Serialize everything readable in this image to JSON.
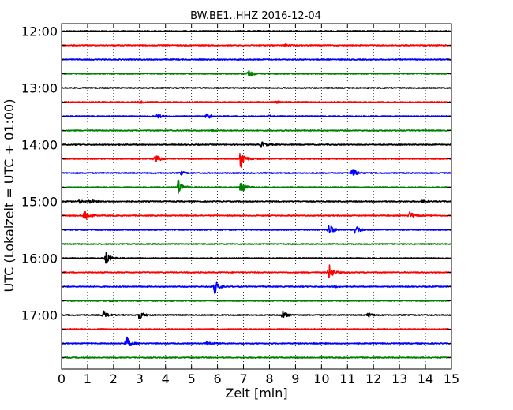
{
  "chart_data": {
    "type": "line",
    "title": "BW.BE1..HHZ 2016-12-04",
    "xlabel": "Zeit  [min]",
    "ylabel": "UTC (Lokalzeit = UTC + 01:00)",
    "xlim": [
      0,
      15
    ],
    "x_ticks": [
      0,
      1,
      2,
      3,
      4,
      5,
      6,
      7,
      8,
      9,
      10,
      11,
      12,
      13,
      14,
      15
    ],
    "x_tick_labels": [
      "0",
      "1",
      "2",
      "3",
      "4",
      "5",
      "6",
      "7",
      "8",
      "9",
      "10",
      "11",
      "12",
      "13",
      "14",
      "15"
    ],
    "y_tick_labels": [
      "12:00",
      "13:00",
      "14:00",
      "15:00",
      "16:00",
      "17:00"
    ],
    "grid": "vertical dotted",
    "line_colors": [
      "#000000",
      "#ff0000",
      "#0000ff",
      "#008000"
    ],
    "traces": [
      {
        "start": "12:00",
        "events": []
      },
      {
        "start": "12:15",
        "events": [
          {
            "t": 8.6,
            "amp": 0.12
          }
        ]
      },
      {
        "start": "12:30",
        "events": []
      },
      {
        "start": "12:45",
        "events": [
          {
            "t": 7.2,
            "amp": 0.45
          }
        ]
      },
      {
        "start": "13:00",
        "events": []
      },
      {
        "start": "13:15",
        "events": [
          {
            "t": 3.0,
            "amp": 0.15
          },
          {
            "t": 8.3,
            "amp": 0.12
          }
        ]
      },
      {
        "start": "13:30",
        "events": [
          {
            "t": 3.7,
            "amp": 0.3
          },
          {
            "t": 5.6,
            "amp": 0.45
          },
          {
            "t": 8.0,
            "amp": 0.12
          }
        ]
      },
      {
        "start": "13:45",
        "events": [
          {
            "t": 5.8,
            "amp": 0.12
          }
        ]
      },
      {
        "start": "14:00",
        "events": [
          {
            "t": 7.7,
            "amp": 0.4
          }
        ]
      },
      {
        "start": "14:15",
        "events": [
          {
            "t": 3.6,
            "amp": 0.65
          },
          {
            "t": 6.9,
            "amp": 1.4
          }
        ]
      },
      {
        "start": "14:30",
        "events": [
          {
            "t": 4.6,
            "amp": 0.22
          },
          {
            "t": 11.2,
            "amp": 0.8
          }
        ]
      },
      {
        "start": "14:45",
        "events": [
          {
            "t": 4.5,
            "amp": 1.2
          },
          {
            "t": 6.9,
            "amp": 0.95
          }
        ]
      },
      {
        "start": "15:00",
        "events": [
          {
            "t": 0.7,
            "amp": 0.2
          },
          {
            "t": 1.1,
            "amp": 0.25
          },
          {
            "t": 13.9,
            "amp": 0.15
          }
        ]
      },
      {
        "start": "15:15",
        "events": [
          {
            "t": 0.9,
            "amp": 1.0
          },
          {
            "t": 13.4,
            "amp": 0.55
          }
        ]
      },
      {
        "start": "15:30",
        "events": [
          {
            "t": 10.3,
            "amp": 0.85
          },
          {
            "t": 11.3,
            "amp": 0.7
          }
        ]
      },
      {
        "start": "15:45",
        "events": []
      },
      {
        "start": "16:00",
        "events": [
          {
            "t": 1.7,
            "amp": 0.95
          }
        ]
      },
      {
        "start": "16:15",
        "events": [
          {
            "t": 10.3,
            "amp": 1.1
          }
        ]
      },
      {
        "start": "16:30",
        "events": [
          {
            "t": 5.9,
            "amp": 0.95
          },
          {
            "t": 10.5,
            "amp": 0.1
          }
        ]
      },
      {
        "start": "16:45",
        "events": [
          {
            "t": 1.9,
            "amp": 0.12
          }
        ]
      },
      {
        "start": "17:00",
        "events": [
          {
            "t": 1.6,
            "amp": 0.55
          },
          {
            "t": 3.0,
            "amp": 0.6
          },
          {
            "t": 8.5,
            "amp": 0.6
          },
          {
            "t": 11.8,
            "amp": 0.3
          }
        ]
      },
      {
        "start": "17:15",
        "events": []
      },
      {
        "start": "17:30",
        "events": [
          {
            "t": 2.5,
            "amp": 0.95
          },
          {
            "t": 5.6,
            "amp": 0.35
          },
          {
            "t": 9.7,
            "amp": 0.1
          }
        ]
      },
      {
        "start": "17:45",
        "events": []
      }
    ]
  }
}
